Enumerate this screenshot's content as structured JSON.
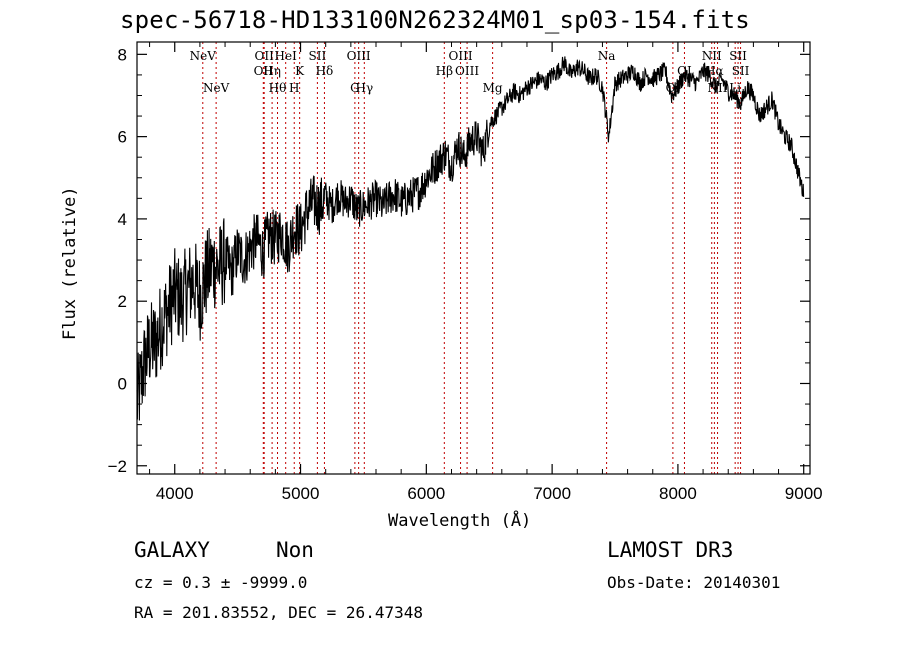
{
  "chart_data": {
    "type": "line",
    "title": "spec-56718-HD133100N262324M01_sp03-154.fits",
    "xlabel": "Wavelength (Å)",
    "ylabel": "Flux (relative)",
    "xlim": [
      3700,
      9050
    ],
    "ylim": [
      -2.2,
      8.3
    ],
    "xticks": [
      4000,
      5000,
      6000,
      7000,
      8000,
      9000
    ],
    "yticks": [
      -2,
      0,
      2,
      4,
      6,
      8
    ],
    "series": [
      {
        "name": "flux",
        "x": [
          3700,
          3760,
          3800,
          3850,
          3900,
          3950,
          4000,
          4050,
          4100,
          4150,
          4200,
          4250,
          4300,
          4350,
          4400,
          4450,
          4500,
          4550,
          4600,
          4650,
          4700,
          4750,
          4800,
          4850,
          4900,
          4950,
          5000,
          5050,
          5100,
          5150,
          5200,
          5250,
          5300,
          5350,
          5400,
          5450,
          5500,
          5550,
          5600,
          5650,
          5700,
          5750,
          5800,
          5850,
          5900,
          5950,
          6000,
          6050,
          6100,
          6150,
          6200,
          6250,
          6300,
          6350,
          6400,
          6450,
          6500,
          6550,
          6600,
          6650,
          6700,
          6750,
          6800,
          6850,
          6900,
          6950,
          7000,
          7050,
          7100,
          7150,
          7200,
          7250,
          7300,
          7350,
          7400,
          7450,
          7500,
          7550,
          7600,
          7650,
          7700,
          7750,
          7800,
          7850,
          7900,
          7950,
          8000,
          8050,
          8100,
          8150,
          8200,
          8250,
          8300,
          8350,
          8400,
          8450,
          8500,
          8550,
          8600,
          8650,
          8700,
          8750,
          8800,
          8850,
          8900,
          8950,
          9000
        ],
        "y": [
          -0.5,
          0.5,
          0.9,
          1.0,
          1.5,
          1.8,
          2.2,
          2.0,
          2.3,
          2.5,
          2.1,
          2.6,
          2.9,
          2.8,
          3.0,
          2.7,
          3.2,
          3.0,
          3.3,
          3.5,
          3.2,
          3.6,
          3.5,
          3.7,
          3.3,
          3.8,
          3.7,
          4.2,
          4.4,
          4.3,
          4.5,
          4.3,
          4.6,
          4.4,
          4.5,
          4.2,
          4.3,
          4.4,
          4.5,
          4.3,
          4.5,
          4.6,
          4.4,
          4.5,
          4.6,
          4.7,
          5.0,
          5.2,
          5.4,
          5.6,
          5.3,
          5.8,
          5.5,
          5.9,
          6.0,
          5.6,
          6.3,
          6.5,
          6.7,
          6.9,
          7.1,
          7.0,
          7.2,
          7.3,
          7.4,
          7.3,
          7.5,
          7.6,
          7.8,
          7.5,
          7.7,
          7.6,
          7.4,
          7.5,
          7.2,
          6.0,
          7.3,
          7.4,
          7.5,
          7.6,
          7.3,
          7.5,
          7.4,
          7.5,
          7.6,
          7.0,
          7.2,
          7.5,
          7.4,
          7.3,
          7.6,
          7.5,
          7.2,
          7.4,
          7.1,
          7.0,
          6.8,
          7.2,
          7.0,
          6.5,
          6.7,
          6.9,
          6.3,
          6.0,
          5.8,
          5.2,
          4.6
        ]
      }
    ],
    "lines": [
      {
        "label": "NeV",
        "x": 4223
      },
      {
        "label": "NeV",
        "x": 4329
      },
      {
        "label": "OII",
        "x": 4704
      },
      {
        "label": "OII",
        "x": 4711
      },
      {
        "label": "Hη",
        "x": 4774
      },
      {
        "label": "Hθ",
        "x": 4817
      },
      {
        "label": "HeI",
        "x": 4882
      },
      {
        "label": "H",
        "x": 4950
      },
      {
        "label": "K",
        "x": 4993
      },
      {
        "label": "SII",
        "x": 5134
      },
      {
        "label": "Hδ",
        "x": 5190
      },
      {
        "label": "G",
        "x": 5432
      },
      {
        "label": "OIII",
        "x": 5462
      },
      {
        "label": "Hγ",
        "x": 5507
      },
      {
        "label": "Hβ",
        "x": 6143
      },
      {
        "label": "OIII",
        "x": 6272
      },
      {
        "label": "OIII",
        "x": 6324
      },
      {
        "label": "Mg",
        "x": 6527
      },
      {
        "label": "Na",
        "x": 7433
      },
      {
        "label": "OI",
        "x": 7960
      },
      {
        "label": "OI",
        "x": 8052
      },
      {
        "label": "NII",
        "x": 8269
      },
      {
        "label": "Hα",
        "x": 8290
      },
      {
        "label": "NII",
        "x": 8315
      },
      {
        "label": "SII",
        "x": 8478
      },
      {
        "label": "Li",
        "x": 8455
      },
      {
        "label": "SII",
        "x": 8498
      }
    ]
  },
  "info": {
    "class": "GALAXY",
    "subclass": "Non",
    "survey": "LAMOST DR3",
    "cz": "cz = 0.3 ± -9999.0",
    "obs_date": "Obs-Date: 20140301",
    "coords": "RA = 201.83552, DEC =  26.47348"
  }
}
